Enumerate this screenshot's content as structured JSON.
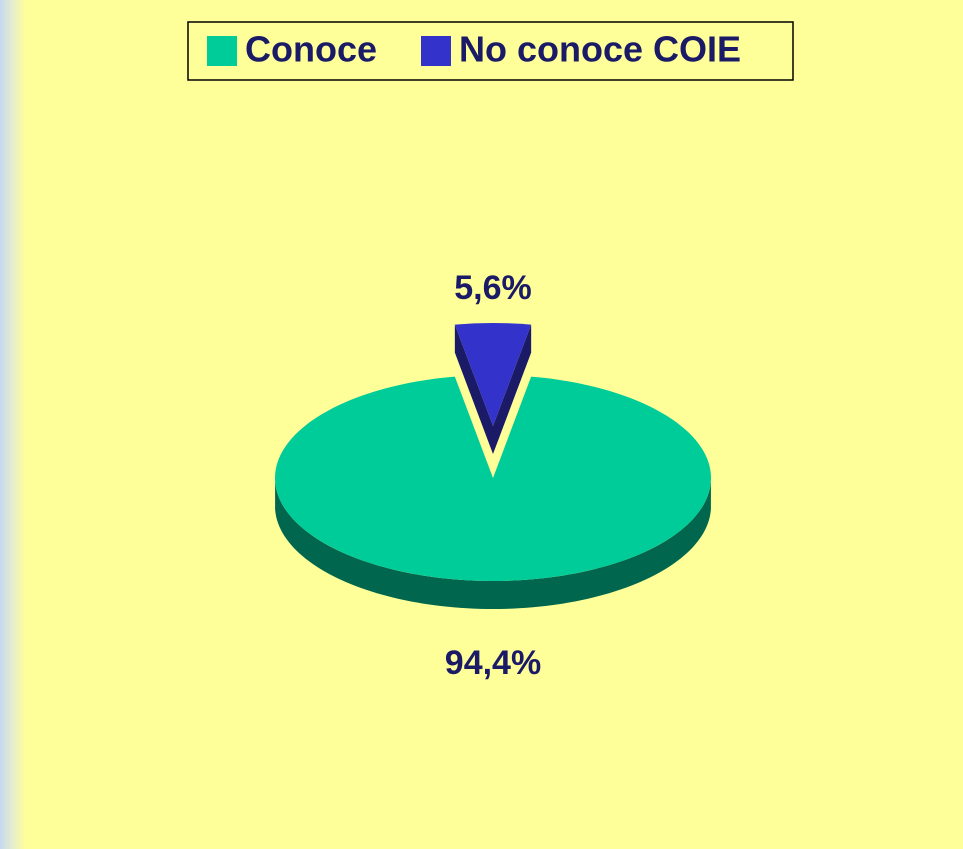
{
  "chart_data": {
    "type": "pie3d",
    "categories": [
      "Conoce",
      "No conoce COIE"
    ],
    "values": [
      94.4,
      5.6
    ],
    "value_labels": [
      "94,4%",
      "5,6%"
    ],
    "colors": [
      "#00cc99",
      "#3333cc"
    ],
    "explode": [
      false,
      true
    ],
    "legend": "top"
  }
}
